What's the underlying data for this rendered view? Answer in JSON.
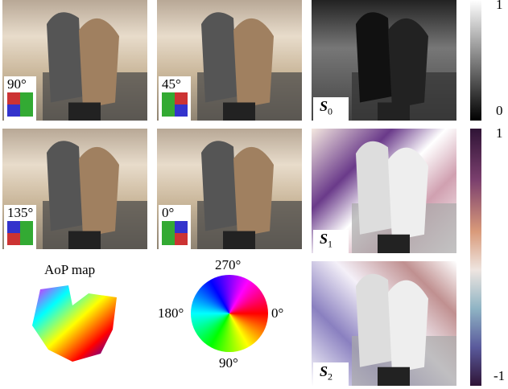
{
  "raw_images": [
    {
      "angle": "90°"
    },
    {
      "angle": "45°"
    },
    {
      "angle": "135°"
    },
    {
      "angle": "0°"
    }
  ],
  "stokes": [
    {
      "symbol": "S",
      "index": "0"
    },
    {
      "symbol": "S",
      "index": "1"
    },
    {
      "symbol": "S",
      "index": "2"
    }
  ],
  "aop": {
    "title": "AoP map",
    "wheel_labels": {
      "top": "270°",
      "left": "180°",
      "right": "0°",
      "bottom": "90°"
    }
  },
  "colorbars": [
    {
      "max": 1,
      "min": 0
    },
    {
      "max": 1,
      "min": -1
    }
  ]
}
